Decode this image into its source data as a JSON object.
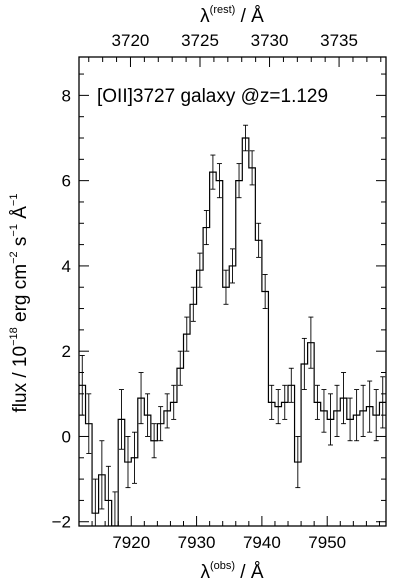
{
  "chart_data": {
    "type": "line",
    "title": "",
    "annotation": "[OII]3727 galaxy @z=1.129",
    "xlabel": {
      "base": "λ",
      "sup": "(obs)",
      "unit": " / Å"
    },
    "ylabel": {
      "pre": "flux / 10",
      "exp1": "−18",
      "mid1": " erg cm",
      "exp2": "−2",
      "mid2": " s",
      "exp3": "−1",
      "mid3": " Å",
      "exp4": "−1"
    },
    "top_xlabel": {
      "base": "λ",
      "sup": "(rest)",
      "unit": " / Å"
    },
    "xlim": [
      7912,
      7959
    ],
    "ylim": [
      -2.1,
      8.9
    ],
    "x_ticks": [
      7920,
      7930,
      7940,
      7950
    ],
    "x_tick_labels": [
      "7920",
      "7930",
      "7940",
      "7950"
    ],
    "y_ticks": [
      -2,
      0,
      2,
      4,
      6,
      8
    ],
    "y_tick_labels": [
      "−2",
      "0",
      "2",
      "4",
      "6",
      "8"
    ],
    "top_ticks": [
      3720,
      3725,
      3730,
      3735
    ],
    "top_tick_labels": [
      "3720",
      "3725",
      "3730",
      "3735"
    ],
    "redshift_factor": 2.129,
    "grid": false,
    "series": [
      {
        "x": [
          7912.5,
          7913.5,
          7914.5,
          7915.5,
          7916.5,
          7917.5,
          7918.5,
          7919.5,
          7920.5,
          7921.5,
          7922.5,
          7923.5,
          7924.5,
          7925.5,
          7926.5,
          7927.5,
          7928.5,
          7929.5,
          7930.5,
          7931.5,
          7932.5,
          7933.5,
          7934.5,
          7935.5,
          7936.5,
          7937.5,
          7938.5,
          7939.5,
          7940.5,
          7941.5,
          7942.5,
          7943.5,
          7944.5,
          7945.5,
          7946.5,
          7947.5,
          7948.5,
          7949.5,
          7950.5,
          7951.5,
          7952.5,
          7953.5,
          7954.5,
          7955.5,
          7956.5,
          7957.5,
          7958.5
        ],
        "y": [
          1.2,
          0.3,
          -1.8,
          -0.9,
          -1.5,
          -2.1,
          0.4,
          -0.6,
          -0.5,
          0.9,
          0.5,
          -0.1,
          0.3,
          0.6,
          0.8,
          1.6,
          2.4,
          3.1,
          3.9,
          4.9,
          6.2,
          6.0,
          3.5,
          4.0,
          6.0,
          7.0,
          6.3,
          4.6,
          3.4,
          0.8,
          0.7,
          0.8,
          1.2,
          -0.6,
          1.7,
          2.2,
          0.8,
          0.6,
          0.4,
          0.6,
          0.9,
          0.4,
          0.5,
          0.6,
          0.7,
          0.5,
          0.8
        ],
        "err": [
          0.7,
          0.7,
          0.8,
          0.8,
          0.8,
          0.8,
          0.7,
          0.6,
          0.6,
          0.6,
          0.5,
          0.4,
          0.4,
          0.4,
          0.4,
          0.4,
          0.4,
          0.4,
          0.4,
          0.4,
          0.4,
          0.4,
          0.4,
          0.4,
          0.4,
          0.3,
          0.4,
          0.4,
          0.4,
          0.4,
          0.4,
          0.4,
          0.4,
          0.6,
          0.6,
          0.6,
          0.4,
          0.5,
          0.6,
          0.6,
          0.6,
          0.5,
          0.6,
          0.6,
          0.6,
          0.6,
          0.6
        ]
      }
    ]
  }
}
